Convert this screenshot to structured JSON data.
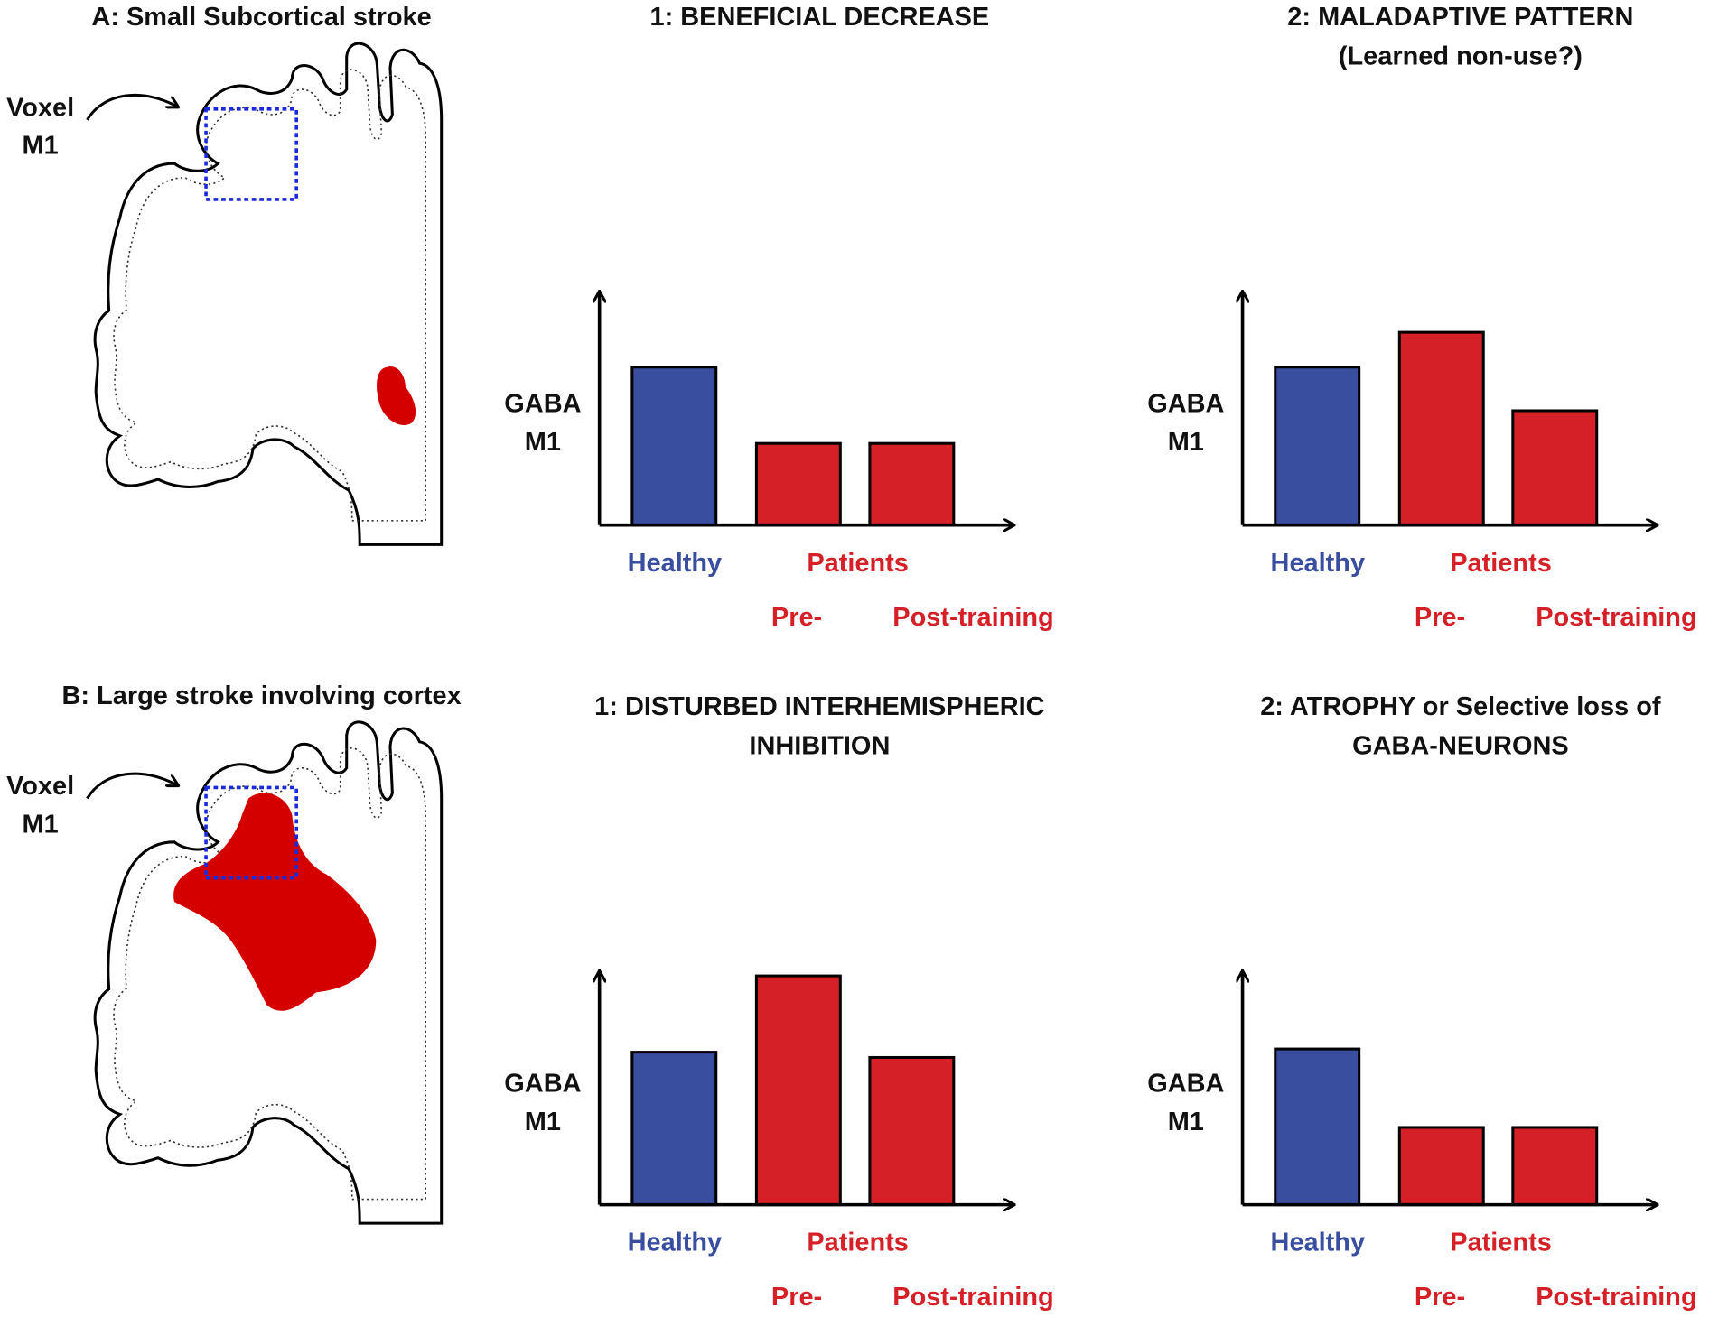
{
  "panels": [
    {
      "title": "A: Small Subcortical stroke",
      "voxel_label": [
        "Voxel",
        "M1"
      ]
    },
    {
      "title": "B: Large stroke involving cortex",
      "voxel_label": [
        "Voxel",
        "M1"
      ]
    }
  ],
  "chart_data": [
    {
      "type": "bar",
      "title": [
        "1: BENEFICIAL DECREASE"
      ],
      "ylabel": [
        "GABA",
        "M1"
      ],
      "categories": [
        "Healthy",
        "Pre-",
        "Post-training"
      ],
      "group_label": "Patients",
      "values": [
        145,
        75,
        75
      ],
      "colors": [
        "#3a4ea0",
        "#d62028",
        "#d62028"
      ],
      "ylim": [
        0,
        214
      ]
    },
    {
      "type": "bar",
      "title": [
        "2: MALADAPTIVE PATTERN",
        "(Learned non-use?)"
      ],
      "ylabel": [
        "GABA",
        "M1"
      ],
      "categories": [
        "Healthy",
        "Pre-",
        "Post-training"
      ],
      "group_label": "Patients",
      "values": [
        145,
        177,
        105
      ],
      "colors": [
        "#3a4ea0",
        "#d62028",
        "#d62028"
      ],
      "ylim": [
        0,
        214
      ]
    },
    {
      "type": "bar",
      "title": [
        "1: DISTURBED INTERHEMISPHERIC",
        "INHIBITION"
      ],
      "ylabel": [
        "GABA",
        "M1"
      ],
      "categories": [
        "Healthy",
        "Pre-",
        "Post-training"
      ],
      "group_label": "Patients",
      "values": [
        144,
        216,
        139
      ],
      "colors": [
        "#3a4ea0",
        "#d62028",
        "#d62028"
      ],
      "ylim": [
        0,
        220
      ]
    },
    {
      "type": "bar",
      "title": [
        "2: ATROPHY or Selective loss of",
        "GABA-NEURONS"
      ],
      "ylabel": [
        "GABA",
        "M1"
      ],
      "categories": [
        "Healthy",
        "Pre-",
        "Post-training"
      ],
      "group_label": "Patients",
      "values": [
        143,
        71,
        71
      ],
      "colors": [
        "#3a4ea0",
        "#d62028",
        "#d62028"
      ],
      "ylim": [
        0,
        214
      ]
    }
  ]
}
